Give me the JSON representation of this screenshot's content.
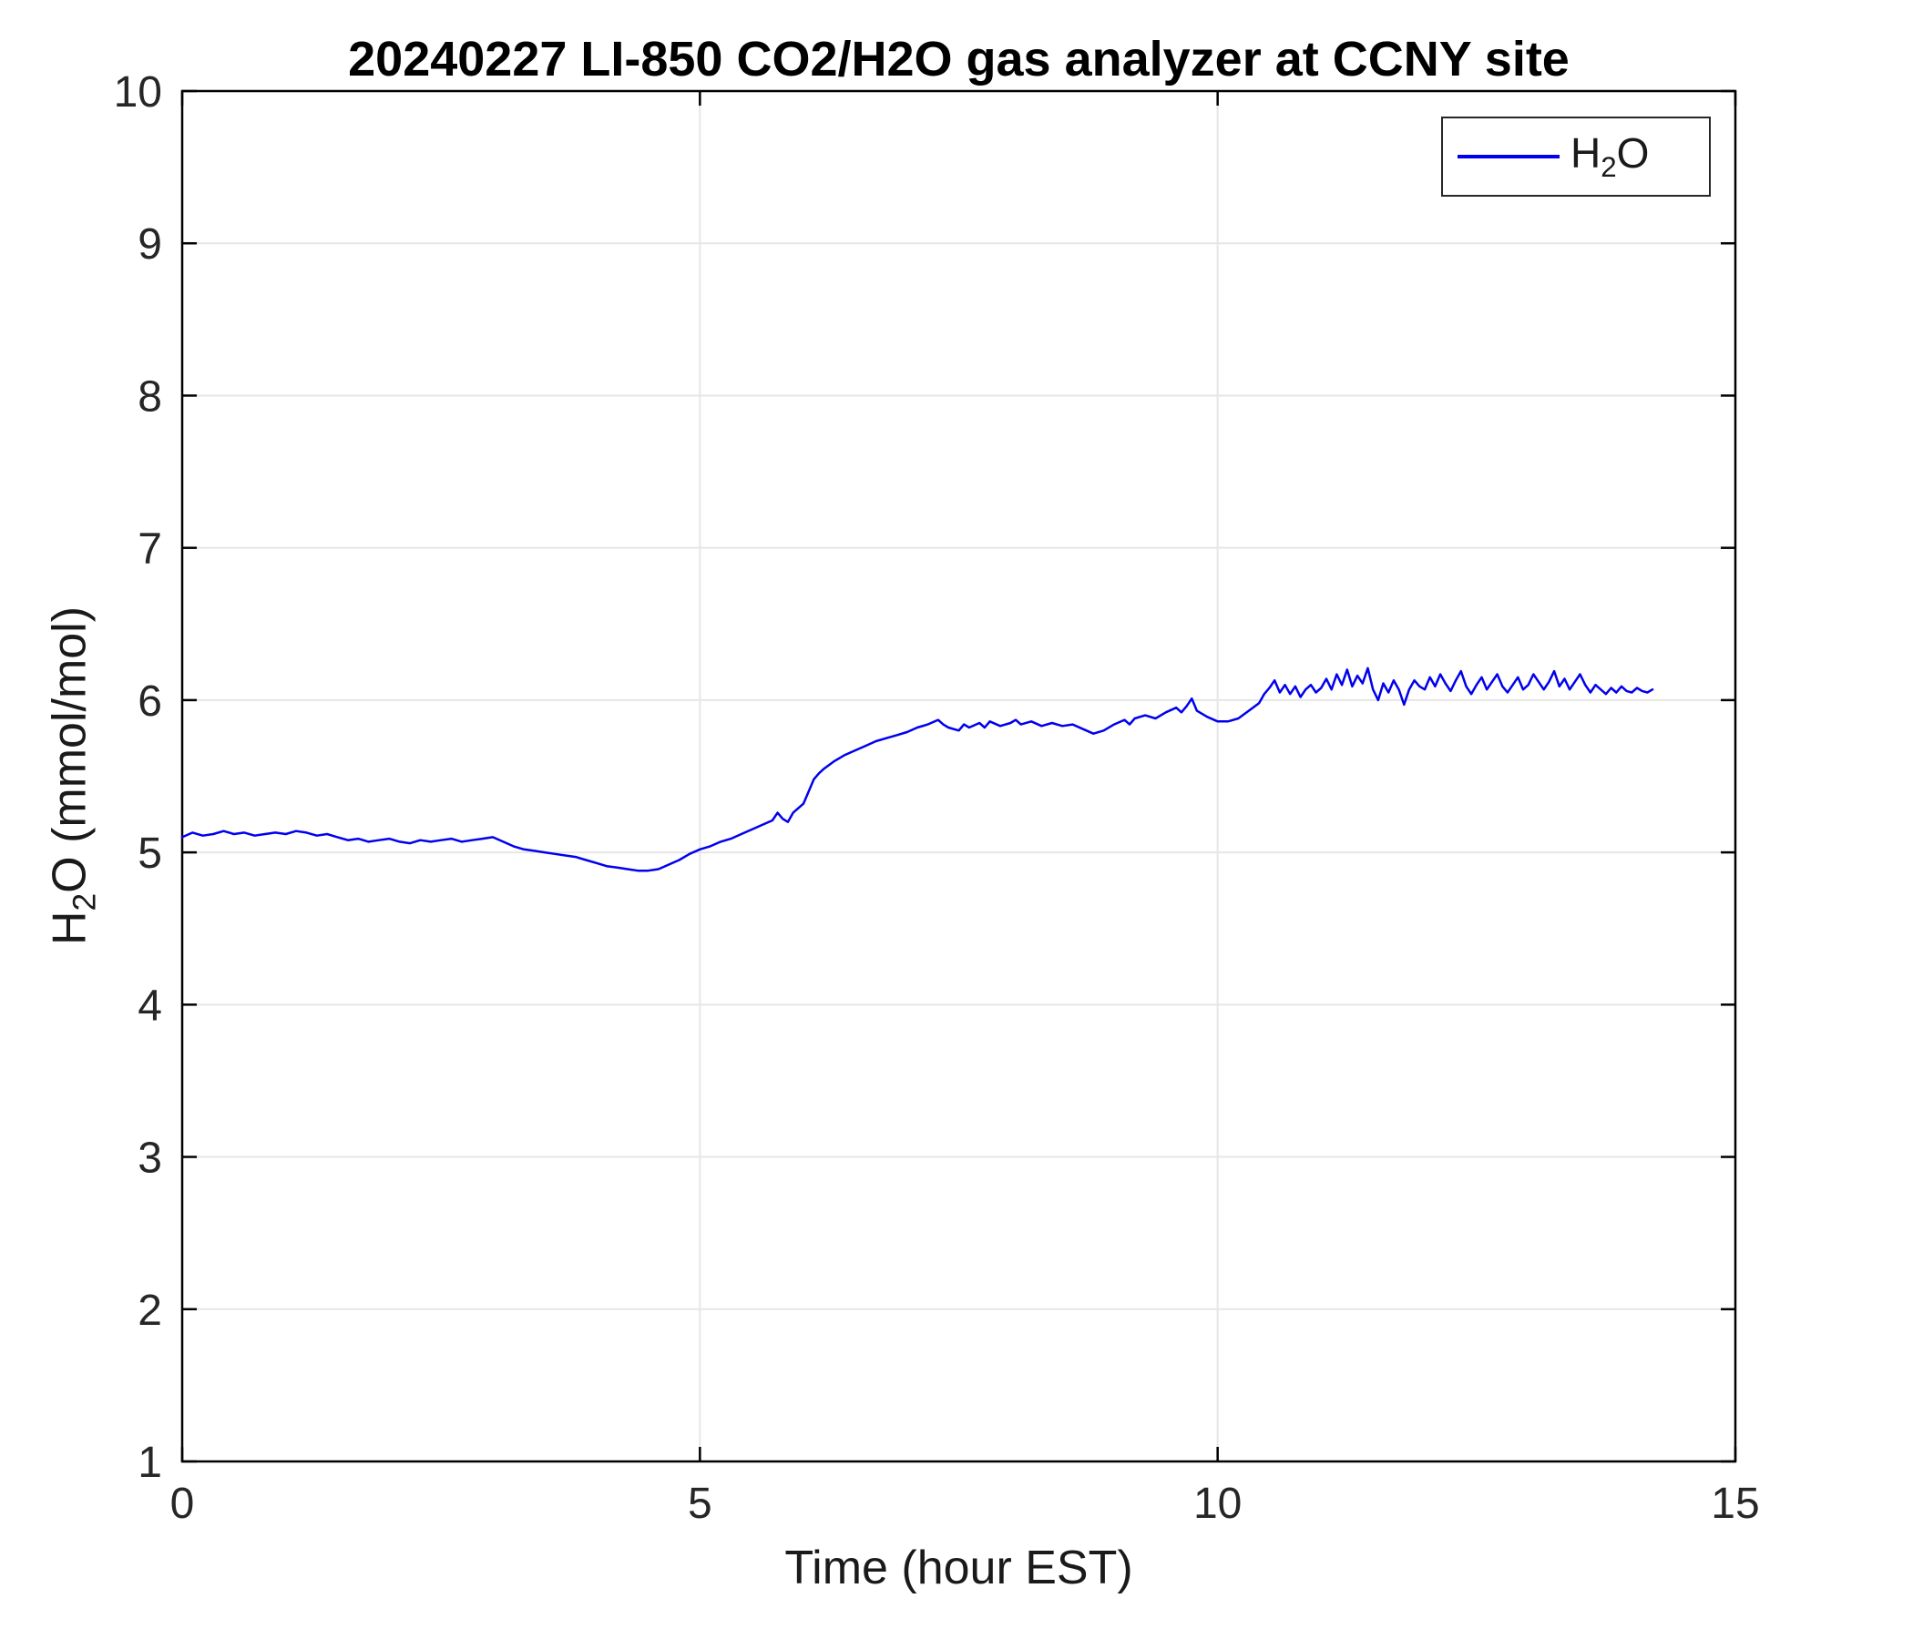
{
  "chart_data": {
    "type": "line",
    "title": "20240227 LI-850 CO2/H2O gas analyzer at CCNY site",
    "xlabel": "Time (hour EST)",
    "ylabel": "H2O (mmol/mol)",
    "ylabel_parts": {
      "pre": "H",
      "sub": "2",
      "post": "O (mmol/mol)"
    },
    "xlim": [
      0,
      15
    ],
    "ylim": [
      1,
      10
    ],
    "xticks": [
      0,
      5,
      10,
      15
    ],
    "yticks": [
      1,
      2,
      3,
      4,
      5,
      6,
      7,
      8,
      9,
      10
    ],
    "grid": true,
    "grid_color": "#e6e6e6",
    "axis_color": "#000000",
    "tick_label_color": "#262626",
    "legend_position": "northeast",
    "legend": [
      {
        "label": "H2O",
        "label_parts": {
          "pre": "H",
          "sub": "2",
          "post": "O"
        },
        "color": "#0000EE"
      }
    ],
    "series": [
      {
        "name": "H2O",
        "color": "#0000EE",
        "points": [
          [
            0.0,
            5.1
          ],
          [
            0.1,
            5.13
          ],
          [
            0.2,
            5.11
          ],
          [
            0.3,
            5.12
          ],
          [
            0.4,
            5.14
          ],
          [
            0.5,
            5.12
          ],
          [
            0.6,
            5.13
          ],
          [
            0.7,
            5.11
          ],
          [
            0.8,
            5.12
          ],
          [
            0.9,
            5.13
          ],
          [
            1.0,
            5.12
          ],
          [
            1.1,
            5.14
          ],
          [
            1.2,
            5.13
          ],
          [
            1.3,
            5.11
          ],
          [
            1.4,
            5.12
          ],
          [
            1.5,
            5.1
          ],
          [
            1.6,
            5.08
          ],
          [
            1.7,
            5.09
          ],
          [
            1.8,
            5.07
          ],
          [
            1.9,
            5.08
          ],
          [
            2.0,
            5.09
          ],
          [
            2.1,
            5.07
          ],
          [
            2.2,
            5.06
          ],
          [
            2.3,
            5.08
          ],
          [
            2.4,
            5.07
          ],
          [
            2.5,
            5.08
          ],
          [
            2.6,
            5.09
          ],
          [
            2.7,
            5.07
          ],
          [
            2.8,
            5.08
          ],
          [
            2.9,
            5.09
          ],
          [
            3.0,
            5.1
          ],
          [
            3.1,
            5.07
          ],
          [
            3.2,
            5.04
          ],
          [
            3.3,
            5.02
          ],
          [
            3.4,
            5.01
          ],
          [
            3.5,
            5.0
          ],
          [
            3.6,
            4.99
          ],
          [
            3.7,
            4.98
          ],
          [
            3.8,
            4.97
          ],
          [
            3.9,
            4.95
          ],
          [
            4.0,
            4.93
          ],
          [
            4.1,
            4.91
          ],
          [
            4.2,
            4.9
          ],
          [
            4.3,
            4.89
          ],
          [
            4.4,
            4.88
          ],
          [
            4.5,
            4.88
          ],
          [
            4.6,
            4.89
          ],
          [
            4.7,
            4.92
          ],
          [
            4.8,
            4.95
          ],
          [
            4.9,
            4.99
          ],
          [
            5.0,
            5.02
          ],
          [
            5.1,
            5.04
          ],
          [
            5.2,
            5.07
          ],
          [
            5.3,
            5.09
          ],
          [
            5.4,
            5.12
          ],
          [
            5.5,
            5.15
          ],
          [
            5.6,
            5.18
          ],
          [
            5.7,
            5.21
          ],
          [
            5.75,
            5.26
          ],
          [
            5.8,
            5.22
          ],
          [
            5.85,
            5.2
          ],
          [
            5.9,
            5.26
          ],
          [
            6.0,
            5.32
          ],
          [
            6.05,
            5.4
          ],
          [
            6.1,
            5.48
          ],
          [
            6.15,
            5.52
          ],
          [
            6.2,
            5.55
          ],
          [
            6.3,
            5.6
          ],
          [
            6.4,
            5.64
          ],
          [
            6.5,
            5.67
          ],
          [
            6.6,
            5.7
          ],
          [
            6.7,
            5.73
          ],
          [
            6.8,
            5.75
          ],
          [
            6.9,
            5.77
          ],
          [
            7.0,
            5.79
          ],
          [
            7.1,
            5.82
          ],
          [
            7.2,
            5.84
          ],
          [
            7.3,
            5.87
          ],
          [
            7.35,
            5.84
          ],
          [
            7.4,
            5.82
          ],
          [
            7.5,
            5.8
          ],
          [
            7.55,
            5.84
          ],
          [
            7.6,
            5.82
          ],
          [
            7.7,
            5.85
          ],
          [
            7.75,
            5.82
          ],
          [
            7.8,
            5.86
          ],
          [
            7.9,
            5.83
          ],
          [
            8.0,
            5.85
          ],
          [
            8.05,
            5.87
          ],
          [
            8.1,
            5.84
          ],
          [
            8.2,
            5.86
          ],
          [
            8.3,
            5.83
          ],
          [
            8.4,
            5.85
          ],
          [
            8.5,
            5.83
          ],
          [
            8.6,
            5.84
          ],
          [
            8.7,
            5.81
          ],
          [
            8.8,
            5.78
          ],
          [
            8.9,
            5.8
          ],
          [
            9.0,
            5.84
          ],
          [
            9.1,
            5.87
          ],
          [
            9.15,
            5.84
          ],
          [
            9.2,
            5.88
          ],
          [
            9.3,
            5.9
          ],
          [
            9.4,
            5.88
          ],
          [
            9.5,
            5.92
          ],
          [
            9.6,
            5.95
          ],
          [
            9.65,
            5.92
          ],
          [
            9.7,
            5.96
          ],
          [
            9.75,
            6.01
          ],
          [
            9.8,
            5.93
          ],
          [
            9.9,
            5.89
          ],
          [
            10.0,
            5.86
          ],
          [
            10.1,
            5.86
          ],
          [
            10.2,
            5.88
          ],
          [
            10.3,
            5.93
          ],
          [
            10.4,
            5.98
          ],
          [
            10.45,
            6.04
          ],
          [
            10.5,
            6.08
          ],
          [
            10.55,
            6.13
          ],
          [
            10.6,
            6.05
          ],
          [
            10.65,
            6.1
          ],
          [
            10.7,
            6.04
          ],
          [
            10.75,
            6.09
          ],
          [
            10.8,
            6.02
          ],
          [
            10.85,
            6.07
          ],
          [
            10.9,
            6.1
          ],
          [
            10.95,
            6.05
          ],
          [
            11.0,
            6.08
          ],
          [
            11.05,
            6.14
          ],
          [
            11.1,
            6.07
          ],
          [
            11.15,
            6.17
          ],
          [
            11.2,
            6.1
          ],
          [
            11.25,
            6.2
          ],
          [
            11.3,
            6.09
          ],
          [
            11.35,
            6.16
          ],
          [
            11.4,
            6.11
          ],
          [
            11.45,
            6.21
          ],
          [
            11.5,
            6.07
          ],
          [
            11.55,
            6.0
          ],
          [
            11.6,
            6.11
          ],
          [
            11.65,
            6.05
          ],
          [
            11.7,
            6.13
          ],
          [
            11.75,
            6.07
          ],
          [
            11.8,
            5.97
          ],
          [
            11.85,
            6.07
          ],
          [
            11.9,
            6.13
          ],
          [
            11.95,
            6.09
          ],
          [
            12.0,
            6.07
          ],
          [
            12.05,
            6.15
          ],
          [
            12.1,
            6.09
          ],
          [
            12.15,
            6.17
          ],
          [
            12.2,
            6.11
          ],
          [
            12.25,
            6.06
          ],
          [
            12.3,
            6.13
          ],
          [
            12.35,
            6.19
          ],
          [
            12.4,
            6.09
          ],
          [
            12.45,
            6.04
          ],
          [
            12.5,
            6.1
          ],
          [
            12.55,
            6.15
          ],
          [
            12.6,
            6.07
          ],
          [
            12.65,
            6.12
          ],
          [
            12.7,
            6.17
          ],
          [
            12.75,
            6.09
          ],
          [
            12.8,
            6.05
          ],
          [
            12.85,
            6.1
          ],
          [
            12.9,
            6.15
          ],
          [
            12.95,
            6.07
          ],
          [
            13.0,
            6.1
          ],
          [
            13.05,
            6.17
          ],
          [
            13.1,
            6.12
          ],
          [
            13.15,
            6.07
          ],
          [
            13.2,
            6.12
          ],
          [
            13.25,
            6.19
          ],
          [
            13.3,
            6.09
          ],
          [
            13.35,
            6.14
          ],
          [
            13.4,
            6.07
          ],
          [
            13.45,
            6.12
          ],
          [
            13.5,
            6.17
          ],
          [
            13.55,
            6.1
          ],
          [
            13.6,
            6.05
          ],
          [
            13.65,
            6.1
          ],
          [
            13.7,
            6.07
          ],
          [
            13.75,
            6.04
          ],
          [
            13.8,
            6.08
          ],
          [
            13.85,
            6.05
          ],
          [
            13.9,
            6.09
          ],
          [
            13.95,
            6.06
          ],
          [
            14.0,
            6.05
          ],
          [
            14.05,
            6.08
          ],
          [
            14.1,
            6.06
          ],
          [
            14.15,
            6.05
          ],
          [
            14.2,
            6.07
          ]
        ]
      }
    ]
  }
}
